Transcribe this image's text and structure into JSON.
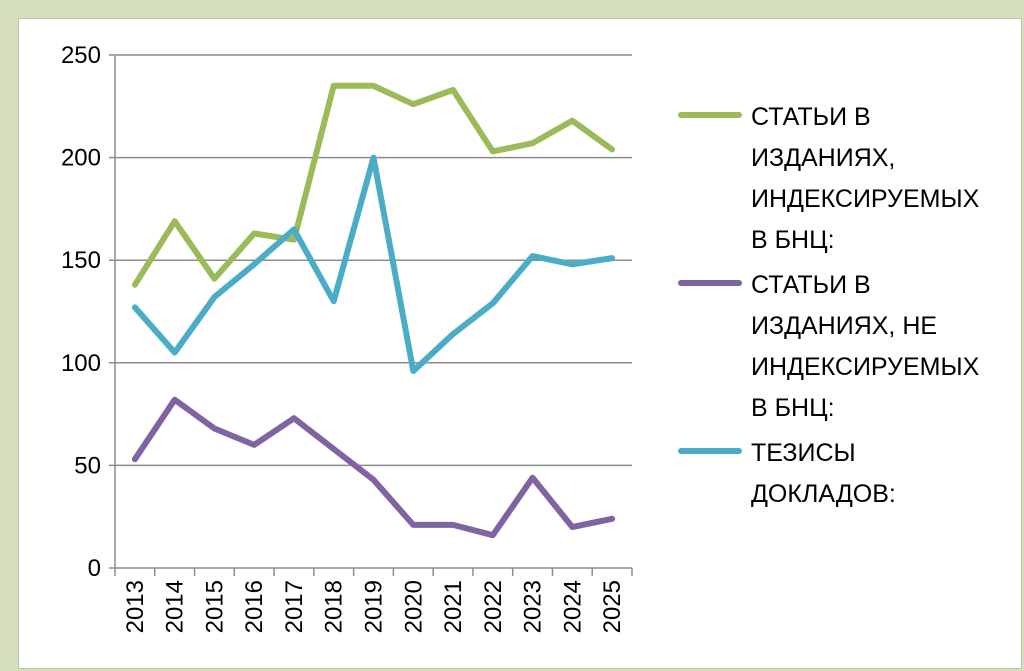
{
  "chart_data": {
    "type": "line",
    "title": "",
    "xlabel": "",
    "ylabel": "",
    "ylim": [
      0,
      250
    ],
    "yticks": [
      "0",
      "50",
      "100",
      "150",
      "200",
      "250"
    ],
    "grid": true,
    "legend_position": "right",
    "categories": [
      "2013",
      "2014",
      "2015",
      "2016",
      "2017",
      "2018",
      "2019",
      "2020",
      "2021",
      "2022",
      "2023",
      "2024",
      "2025"
    ],
    "series": [
      {
        "name": "СТАТЬИ В ИЗДАНИЯХ, ИНДЕКСИРУЕМЫХ В БНЦ:",
        "legend_lines": [
          "СТАТЬИ В",
          "ИЗДАНИЯХ,",
          "ИНДЕКСИРУЕМЫХ",
          "В БНЦ:"
        ],
        "color": "#9bbb59",
        "values": [
          138,
          169,
          141,
          163,
          160,
          235,
          235,
          226,
          233,
          203,
          207,
          218,
          204
        ]
      },
      {
        "name": "СТАТЬИ В ИЗДАНИЯХ, НЕ ИНДЕКСИРУЕМЫХ В БНЦ:",
        "legend_lines": [
          "СТАТЬИ В",
          "ИЗДАНИЯХ, НЕ",
          "ИНДЕКСИРУЕМЫХ",
          "В БНЦ:"
        ],
        "color": "#8064a2",
        "values": [
          53,
          82,
          68,
          60,
          73,
          58,
          43,
          21,
          21,
          16,
          44,
          20,
          24
        ]
      },
      {
        "name": "ТЕЗИСЫ ДОКЛАДОВ:",
        "legend_lines": [
          "ТЕЗИСЫ",
          "ДОКЛАДОВ:"
        ],
        "color": "#4bacc6",
        "values": [
          127,
          105,
          132,
          148,
          165,
          130,
          200,
          96,
          114,
          129,
          152,
          148,
          151
        ]
      }
    ]
  }
}
